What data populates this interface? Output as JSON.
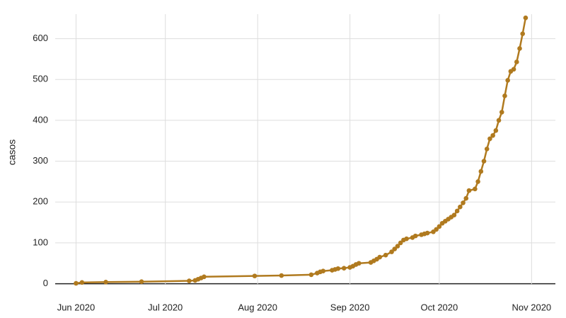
{
  "chart_data": {
    "type": "line",
    "y_label": "casos",
    "color": "#b07a1f",
    "x": [
      153,
      155,
      163,
      175,
      191,
      193,
      194,
      195,
      196,
      213,
      222,
      232,
      234,
      235,
      236,
      239,
      240,
      241,
      243,
      245,
      246,
      247,
      248,
      252,
      253,
      254,
      255,
      257,
      259,
      260,
      261,
      262,
      263,
      264,
      266,
      267,
      269,
      270,
      271,
      273,
      274,
      275,
      276,
      277,
      278,
      279,
      280,
      281,
      282,
      283,
      284,
      285,
      287,
      288,
      289,
      290,
      291,
      292,
      293,
      294,
      295,
      296,
      297,
      298,
      299,
      300,
      301,
      302,
      303,
      304
    ],
    "values": [
      1,
      3,
      4,
      5,
      7,
      8,
      11,
      14,
      17,
      19,
      20,
      22,
      26,
      29,
      31,
      33,
      35,
      37,
      38,
      40,
      43,
      47,
      50,
      52,
      56,
      60,
      65,
      70,
      78,
      85,
      92,
      100,
      107,
      110,
      113,
      117,
      120,
      122,
      124,
      127,
      133,
      140,
      148,
      153,
      158,
      163,
      168,
      178,
      188,
      198,
      209,
      228,
      232,
      250,
      275,
      300,
      330,
      355,
      363,
      375,
      400,
      420,
      460,
      498,
      520,
      525,
      543,
      576,
      612,
      651
    ],
    "xlim": [
      146,
      314
    ],
    "xticks": [
      {
        "value": 153,
        "label": "Jun 2020"
      },
      {
        "value": 183,
        "label": "Jul 2020"
      },
      {
        "value": 214,
        "label": "Aug 2020"
      },
      {
        "value": 245,
        "label": "Sep 2020"
      },
      {
        "value": 275,
        "label": "Oct 2020"
      },
      {
        "value": 306,
        "label": "Nov 2020"
      }
    ],
    "ylim": [
      -25,
      660
    ],
    "yticks": [
      0,
      100,
      200,
      300,
      400,
      500,
      600
    ],
    "grid": true
  }
}
